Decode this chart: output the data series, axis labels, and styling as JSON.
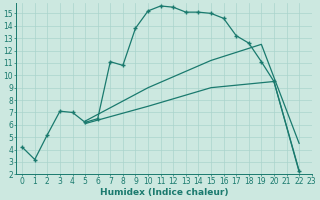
{
  "xlabel": "Humidex (Indice chaleur)",
  "bg_color": "#cce8e0",
  "line_color": "#1a7a6e",
  "xlim": [
    -0.5,
    23
  ],
  "ylim": [
    2,
    15.8
  ],
  "xticks": [
    0,
    1,
    2,
    3,
    4,
    5,
    6,
    7,
    8,
    9,
    10,
    11,
    12,
    13,
    14,
    15,
    16,
    17,
    18,
    19,
    20,
    21,
    22,
    23
  ],
  "yticks": [
    2,
    3,
    4,
    5,
    6,
    7,
    8,
    9,
    10,
    11,
    12,
    13,
    14,
    15
  ],
  "series1_x": [
    0,
    1,
    2,
    3,
    4,
    5,
    6,
    7,
    8,
    9,
    10,
    11,
    12,
    13,
    14,
    15,
    16,
    17,
    18,
    19,
    20,
    22
  ],
  "series1_y": [
    4.2,
    3.2,
    5.2,
    7.1,
    7.0,
    6.2,
    6.5,
    11.1,
    10.8,
    13.8,
    15.2,
    15.6,
    15.5,
    15.1,
    15.1,
    15.0,
    14.6,
    13.2,
    12.6,
    11.1,
    9.5,
    2.3
  ],
  "series2_x": [
    5,
    10,
    15,
    19,
    22
  ],
  "series2_y": [
    6.3,
    9.0,
    11.2,
    12.5,
    4.5
  ],
  "series3_x": [
    5,
    10,
    15,
    20,
    22
  ],
  "series3_y": [
    6.1,
    7.5,
    9.0,
    9.5,
    2.2
  ],
  "grid_color": "#aad4cc",
  "tick_fontsize": 5.5,
  "axis_fontsize": 6.5
}
